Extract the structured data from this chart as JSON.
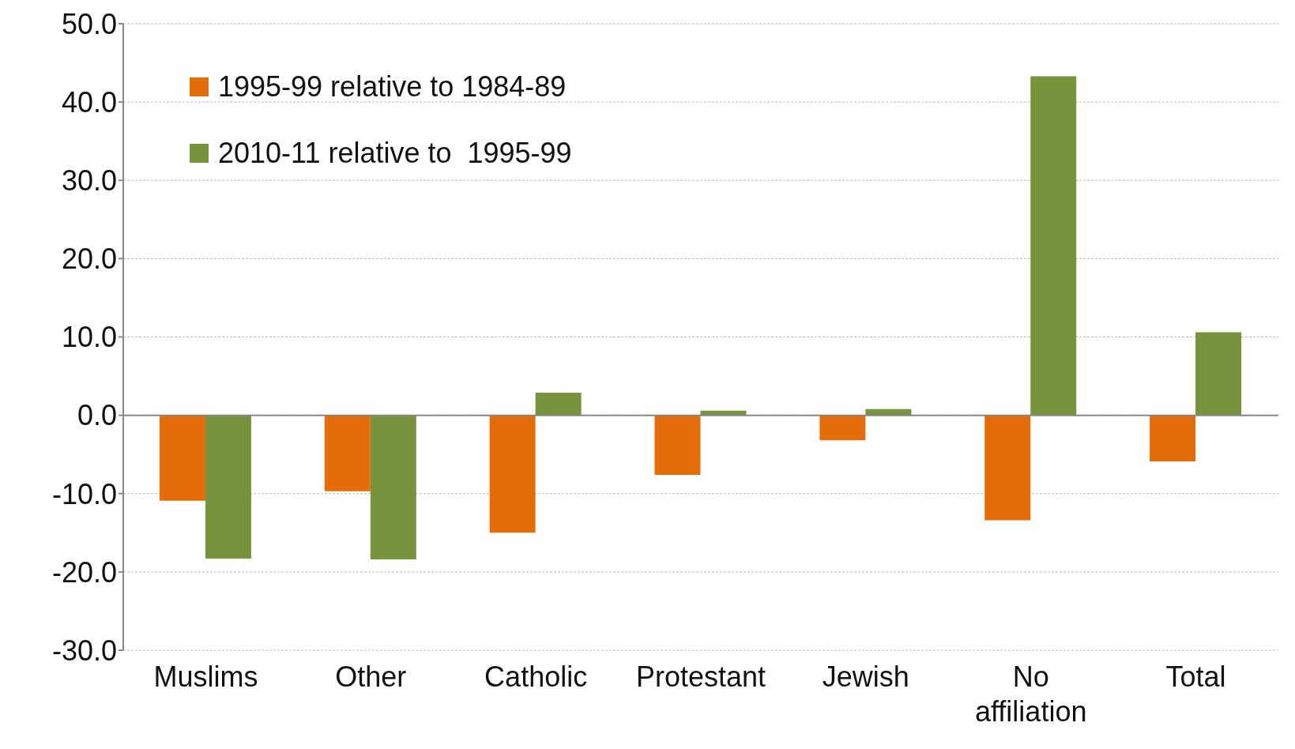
{
  "chart_data": {
    "type": "bar",
    "categories": [
      "Muslims",
      "Other",
      "Catholic",
      "Protestant",
      "Jewish",
      "No affiliation",
      "Total"
    ],
    "series": [
      {
        "name": "1995-99 relative to 1984-89",
        "color": "#e46c0a",
        "values": [
          -10.9,
          -9.7,
          -15.0,
          -7.6,
          -3.2,
          -13.4,
          -5.9
        ]
      },
      {
        "name": "2010-11 relative to  1995-99",
        "color": "#77933c",
        "values": [
          -18.3,
          -18.4,
          2.9,
          0.6,
          0.8,
          43.3,
          10.6
        ]
      }
    ],
    "ylim": [
      -30,
      50
    ],
    "yticks": [
      {
        "value": -30,
        "label": "-30.0"
      },
      {
        "value": -20,
        "label": "-20.0"
      },
      {
        "value": -10,
        "label": "-10.0"
      },
      {
        "value": 0,
        "label": "0.0"
      },
      {
        "value": 10,
        "label": "10.0"
      },
      {
        "value": 20,
        "label": "20.0"
      },
      {
        "value": 30,
        "label": "30.0"
      },
      {
        "value": 40,
        "label": "40.0"
      },
      {
        "value": 50,
        "label": "50.0"
      }
    ],
    "grid": "y",
    "legend": "top left"
  }
}
